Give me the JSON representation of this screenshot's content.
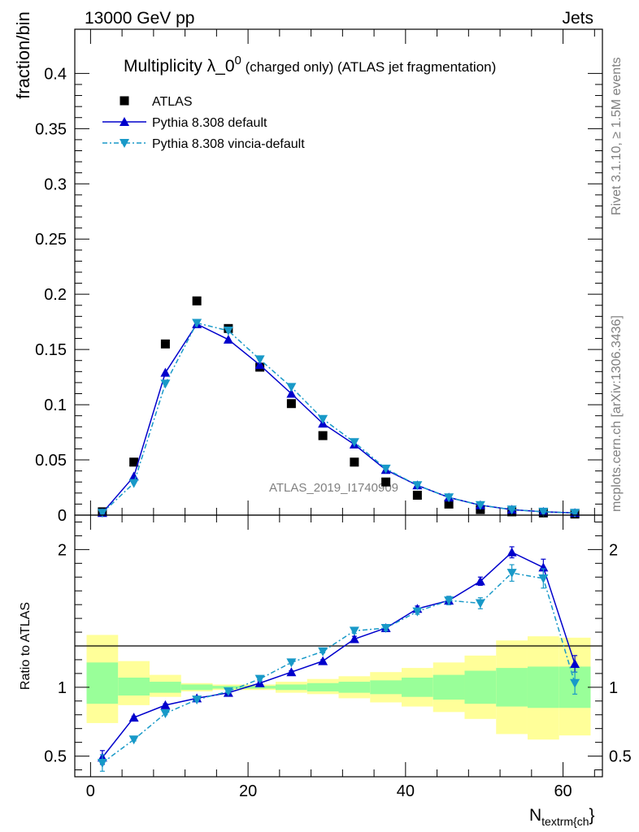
{
  "header": {
    "energy_label": "13000 GeV pp",
    "process_label": "Jets"
  },
  "side_labels": {
    "rivet": "Rivet 3.1.10, ≥ 1.5M events",
    "mcplots": "mcplots.cern.ch [arXiv:1306.3436]"
  },
  "watermark": "ATLAS_2019_I1740909",
  "colors": {
    "atlas": "#000000",
    "pythia_default": "#0000cc",
    "pythia_vincia": "#1899c8",
    "band_inner": "#99ff99",
    "band_outer": "#ffff99"
  },
  "chart_data": [
    {
      "type": "scatter",
      "title_main": "Multiplicity λ_0",
      "title_sup": "0",
      "title_rest": " (charged only) (ATLAS jet fragmentation)",
      "ylabel": "fraction/bin",
      "xlim": [
        -2,
        65
      ],
      "ylim": [
        0,
        0.44
      ],
      "yticks": [
        0,
        0.05,
        0.1,
        0.15,
        0.2,
        0.25,
        0.3,
        0.35,
        0.4
      ],
      "ytick_labels": [
        "0",
        "0.05",
        "0.1",
        "0.15",
        "0.2",
        "0.25",
        "0.3",
        "0.35",
        "0.4"
      ],
      "legend_placement": "top-left",
      "x": [
        1.5,
        5.5,
        9.5,
        13.5,
        17.5,
        21.5,
        25.5,
        29.5,
        33.5,
        37.5,
        41.5,
        45.5,
        49.5,
        53.5,
        57.5,
        61.5
      ],
      "series": [
        {
          "name": "ATLAS",
          "marker": "square",
          "values": [
            0.003,
            0.048,
            0.155,
            0.194,
            0.169,
            0.134,
            0.101,
            0.072,
            0.048,
            0.03,
            0.018,
            0.01,
            0.005,
            0.003,
            0.002,
            0.001
          ]
        },
        {
          "name": "Pythia 8.308 default",
          "marker": "triangle-up",
          "values": [
            0.002,
            0.035,
            0.129,
            0.173,
            0.159,
            0.136,
            0.11,
            0.083,
            0.064,
            0.041,
            0.027,
            0.016,
            0.009,
            0.005,
            0.003,
            0.002
          ]
        },
        {
          "name": "Pythia 8.308 vincia-default",
          "marker": "triangle-down",
          "values": [
            0.002,
            0.029,
            0.119,
            0.174,
            0.167,
            0.141,
            0.116,
            0.087,
            0.066,
            0.042,
            0.027,
            0.016,
            0.009,
            0.005,
            0.003,
            0.002
          ]
        }
      ]
    },
    {
      "type": "line",
      "ylabel": "Ratio to ATLAS",
      "xlabel_main": "N",
      "xlabel_sub": "textrm{ch",
      "xlabel_tail": "}",
      "xlim": [
        -2,
        65
      ],
      "ylim": [
        0.35,
        2.25
      ],
      "xticks": [
        0,
        20,
        40,
        60
      ],
      "xtick_labels": [
        "0",
        "20",
        "40",
        "60"
      ],
      "yticks": [
        0.5,
        1,
        2
      ],
      "ytick_labels": [
        "0.5",
        "1",
        "2"
      ],
      "bin_edges": [
        -0.5,
        3.5,
        7.5,
        11.5,
        15.5,
        19.5,
        23.5,
        27.5,
        31.5,
        35.5,
        39.5,
        43.5,
        47.5,
        51.5,
        55.5,
        59.5,
        63.5
      ],
      "band_inner": {
        "lo": [
          0.88,
          0.94,
          0.96,
          0.98,
          0.99,
          0.99,
          0.98,
          0.97,
          0.96,
          0.95,
          0.93,
          0.91,
          0.88,
          0.86,
          0.85,
          0.85
        ],
        "hi": [
          1.18,
          1.07,
          1.04,
          1.02,
          1.01,
          1.01,
          1.02,
          1.03,
          1.04,
          1.05,
          1.07,
          1.09,
          1.12,
          1.14,
          1.15,
          1.15
        ]
      },
      "band_outer": {
        "lo": [
          0.74,
          0.87,
          0.93,
          0.97,
          0.98,
          0.98,
          0.96,
          0.95,
          0.92,
          0.89,
          0.86,
          0.82,
          0.77,
          0.66,
          0.62,
          0.65
        ],
        "hi": [
          1.38,
          1.19,
          1.09,
          1.03,
          1.02,
          1.02,
          1.04,
          1.06,
          1.08,
          1.11,
          1.14,
          1.18,
          1.23,
          1.34,
          1.37,
          1.36
        ]
      },
      "series": [
        {
          "name": "Pythia 8.308 default",
          "values": [
            0.49,
            0.78,
            0.87,
            0.92,
            0.96,
            1.03,
            1.11,
            1.19,
            1.35,
            1.43,
            1.57,
            1.63,
            1.77,
            1.98,
            1.87,
            1.17
          ],
          "errors": [
            0.05,
            0.01,
            0.01,
            0.01,
            0.01,
            0.01,
            0.01,
            0.01,
            0.02,
            0.02,
            0.02,
            0.03,
            0.03,
            0.04,
            0.06,
            0.06
          ]
        },
        {
          "name": "Pythia 8.308 vincia-default",
          "values": [
            0.45,
            0.62,
            0.81,
            0.91,
            0.97,
            1.06,
            1.18,
            1.26,
            1.41,
            1.43,
            1.55,
            1.63,
            1.61,
            1.83,
            1.79,
            1.03
          ],
          "errors": [
            0.06,
            0.01,
            0.01,
            0.01,
            0.01,
            0.01,
            0.01,
            0.01,
            0.02,
            0.02,
            0.02,
            0.03,
            0.04,
            0.06,
            0.07,
            0.08
          ]
        }
      ]
    }
  ]
}
